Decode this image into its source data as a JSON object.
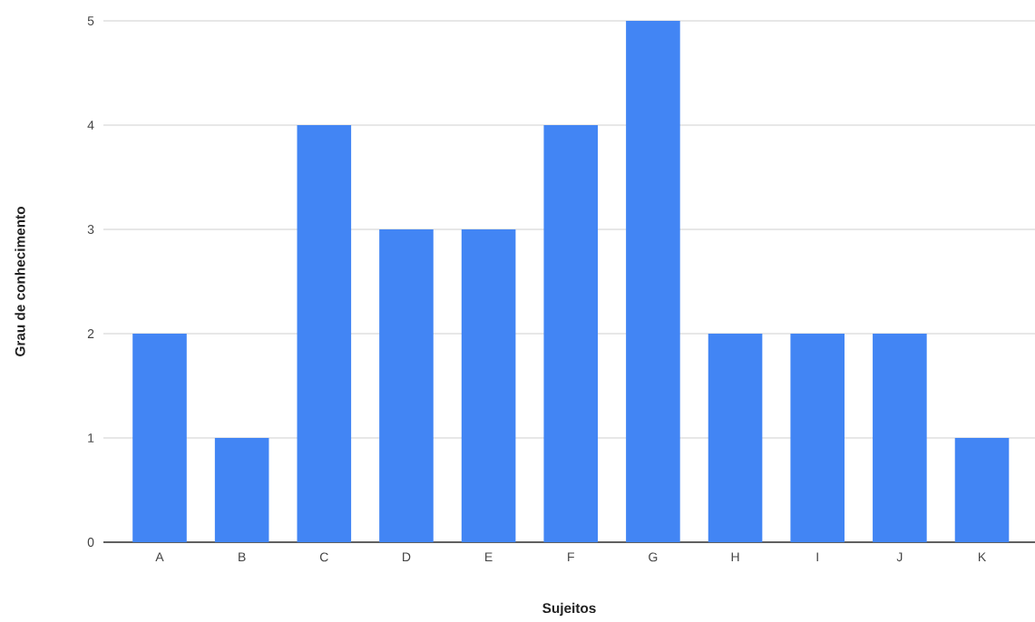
{
  "chart_data": {
    "type": "bar",
    "xlabel": "Sujeitos",
    "ylabel": "Grau de conhecimento",
    "categories": [
      "A",
      "B",
      "C",
      "D",
      "E",
      "F",
      "G",
      "H",
      "I",
      "J",
      "K"
    ],
    "values": [
      2,
      1,
      4,
      3,
      3,
      4,
      5,
      2,
      2,
      2,
      1
    ],
    "color": "#4285f4",
    "ylim": [
      0,
      5
    ],
    "yticks": [
      0,
      1,
      2,
      3,
      4,
      5
    ],
    "grid": "y"
  }
}
